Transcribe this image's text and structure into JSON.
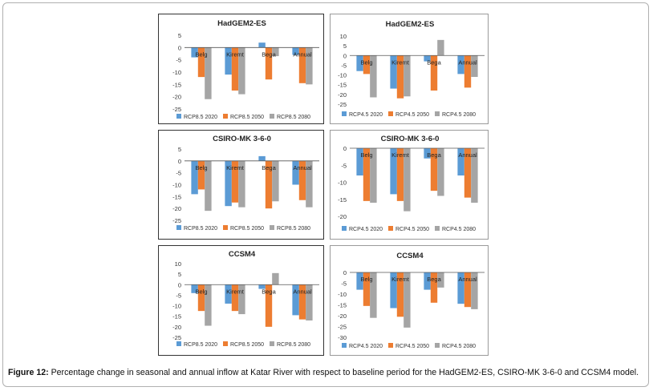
{
  "caption": {
    "label": "Figure 12:",
    "text": " Percentage change in seasonal and annual inflow at Katar River with respect to baseline period for the HadGEM2-ES, CSIRO-MK 3-6-0 and CCSM4 model."
  },
  "colors": {
    "s2020": "#5b9bd5",
    "s2050": "#ed7d31",
    "s2080": "#a5a5a5"
  },
  "chart_data": [
    {
      "type": "bar",
      "title": "HadGEM2-ES",
      "categories": [
        "Belg",
        "Kiremt",
        "Bega",
        "Annual"
      ],
      "ylim": [
        -25,
        5
      ],
      "yticks": [
        5,
        0,
        -5,
        -10,
        -15,
        -20,
        -25
      ],
      "series": [
        {
          "name": "RCP8.5 2020",
          "values": [
            -4,
            -11,
            2,
            -3
          ]
        },
        {
          "name": "RCP8.5 2050",
          "values": [
            -12,
            -17.5,
            -13,
            -14.5
          ]
        },
        {
          "name": "RCP8.5 2080",
          "values": [
            -21,
            -19,
            -3.5,
            -15
          ]
        }
      ]
    },
    {
      "type": "bar",
      "title": "HadGEM2-ES",
      "categories": [
        "Belg",
        "Kiremt",
        "Bega",
        "Annual"
      ],
      "ylim": [
        -25,
        10
      ],
      "yticks": [
        10,
        5,
        0,
        -5,
        -10,
        -15,
        -20,
        -25
      ],
      "series": [
        {
          "name": "RCP4.5 2020",
          "values": [
            -8,
            -17,
            -3,
            -9.5
          ]
        },
        {
          "name": "RCP4.5 2050",
          "values": [
            -9.5,
            -22,
            -18,
            -16.5
          ]
        },
        {
          "name": "RCP4.5 2080",
          "values": [
            -21.5,
            -21,
            8,
            -11
          ]
        }
      ]
    },
    {
      "type": "bar",
      "title": "CSIRO-MK 3-6-0",
      "categories": [
        "Belg",
        "Kiremt",
        "Bega",
        "Annual"
      ],
      "ylim": [
        -25,
        5
      ],
      "yticks": [
        5,
        0,
        -5,
        -10,
        -15,
        -20,
        -25
      ],
      "series": [
        {
          "name": "RCP8.5 2020",
          "values": [
            -14,
            -19,
            2,
            -10
          ]
        },
        {
          "name": "RCP8.5 2050",
          "values": [
            -12,
            -17.5,
            -20,
            -16.5
          ]
        },
        {
          "name": "RCP8.5 2080",
          "values": [
            -21,
            -19.5,
            -17,
            -19.5
          ]
        }
      ]
    },
    {
      "type": "bar",
      "title": "CSIRO-MK 3-6-0",
      "categories": [
        "Belg",
        "Kiremt",
        "Bega",
        "Annual"
      ],
      "ylim": [
        -20,
        0
      ],
      "yticks": [
        0,
        -5,
        -10,
        -15,
        -20
      ],
      "series": [
        {
          "name": "RCP4.5 2020",
          "values": [
            -8,
            -13.5,
            -3,
            -8
          ]
        },
        {
          "name": "RCP4.5 2050",
          "values": [
            -15.5,
            -15.5,
            -12.5,
            -14.5
          ]
        },
        {
          "name": "RCP4.5 2080",
          "values": [
            -16,
            -18.5,
            -14,
            -16
          ]
        }
      ]
    },
    {
      "type": "bar",
      "title": "CCSM4",
      "categories": [
        "Belg",
        "Kiremt",
        "Bega",
        "Annual"
      ],
      "ylim": [
        -25,
        10
      ],
      "yticks": [
        10,
        5,
        0,
        -5,
        -10,
        -15,
        -20,
        -25
      ],
      "series": [
        {
          "name": "RCP8.5 2020",
          "values": [
            -4,
            -9,
            -2,
            -14.5
          ]
        },
        {
          "name": "RCP8.5 2050",
          "values": [
            -12.5,
            -12.5,
            -20,
            -16.5
          ]
        },
        {
          "name": "RCP8.5 2080",
          "values": [
            -19.5,
            -14,
            5.5,
            -17
          ]
        }
      ]
    },
    {
      "type": "bar",
      "title": "CCSM4",
      "categories": [
        "Belg",
        "Kiremt",
        "Bega",
        "Annual"
      ],
      "ylim": [
        -30,
        0
      ],
      "yticks": [
        0,
        -5,
        -10,
        -15,
        -20,
        -25,
        -30
      ],
      "series": [
        {
          "name": "RCP4.5 2020",
          "values": [
            -8,
            -16.5,
            -8,
            -14.5
          ]
        },
        {
          "name": "RCP4.5 2050",
          "values": [
            -15.5,
            -20.5,
            -14,
            -16
          ]
        },
        {
          "name": "RCP4.5 2080",
          "values": [
            -21,
            -25.5,
            -7,
            -17
          ]
        }
      ]
    }
  ]
}
